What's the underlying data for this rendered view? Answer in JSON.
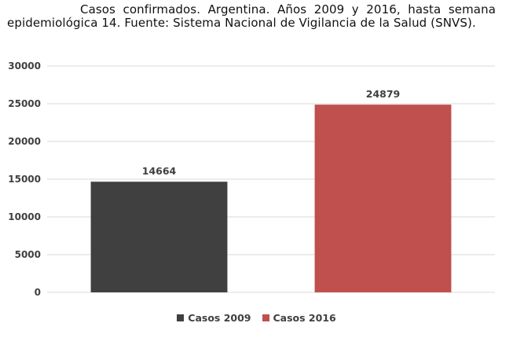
{
  "caption": "Casos confirmados. Argentina. Años 2009 y 2016, hasta semana epidemiológica 14. Fuente: Sistema Nacional de Vigilancia de la Salud (SNVS).",
  "chart_data": {
    "type": "bar",
    "categories": [
      "Casos 2009",
      "Casos 2016"
    ],
    "values": [
      14664,
      24879
    ],
    "data_labels": [
      "14664",
      "24879"
    ],
    "colors": [
      "#404040",
      "#c0504d"
    ],
    "ylim": [
      0,
      30000
    ],
    "yticks": [
      "0",
      "5000",
      "10000",
      "15000",
      "20000",
      "25000",
      "30000"
    ],
    "grid": true,
    "legend": {
      "placement": "bottom",
      "entries": [
        "Casos 2009",
        "Casos 2016"
      ]
    }
  }
}
